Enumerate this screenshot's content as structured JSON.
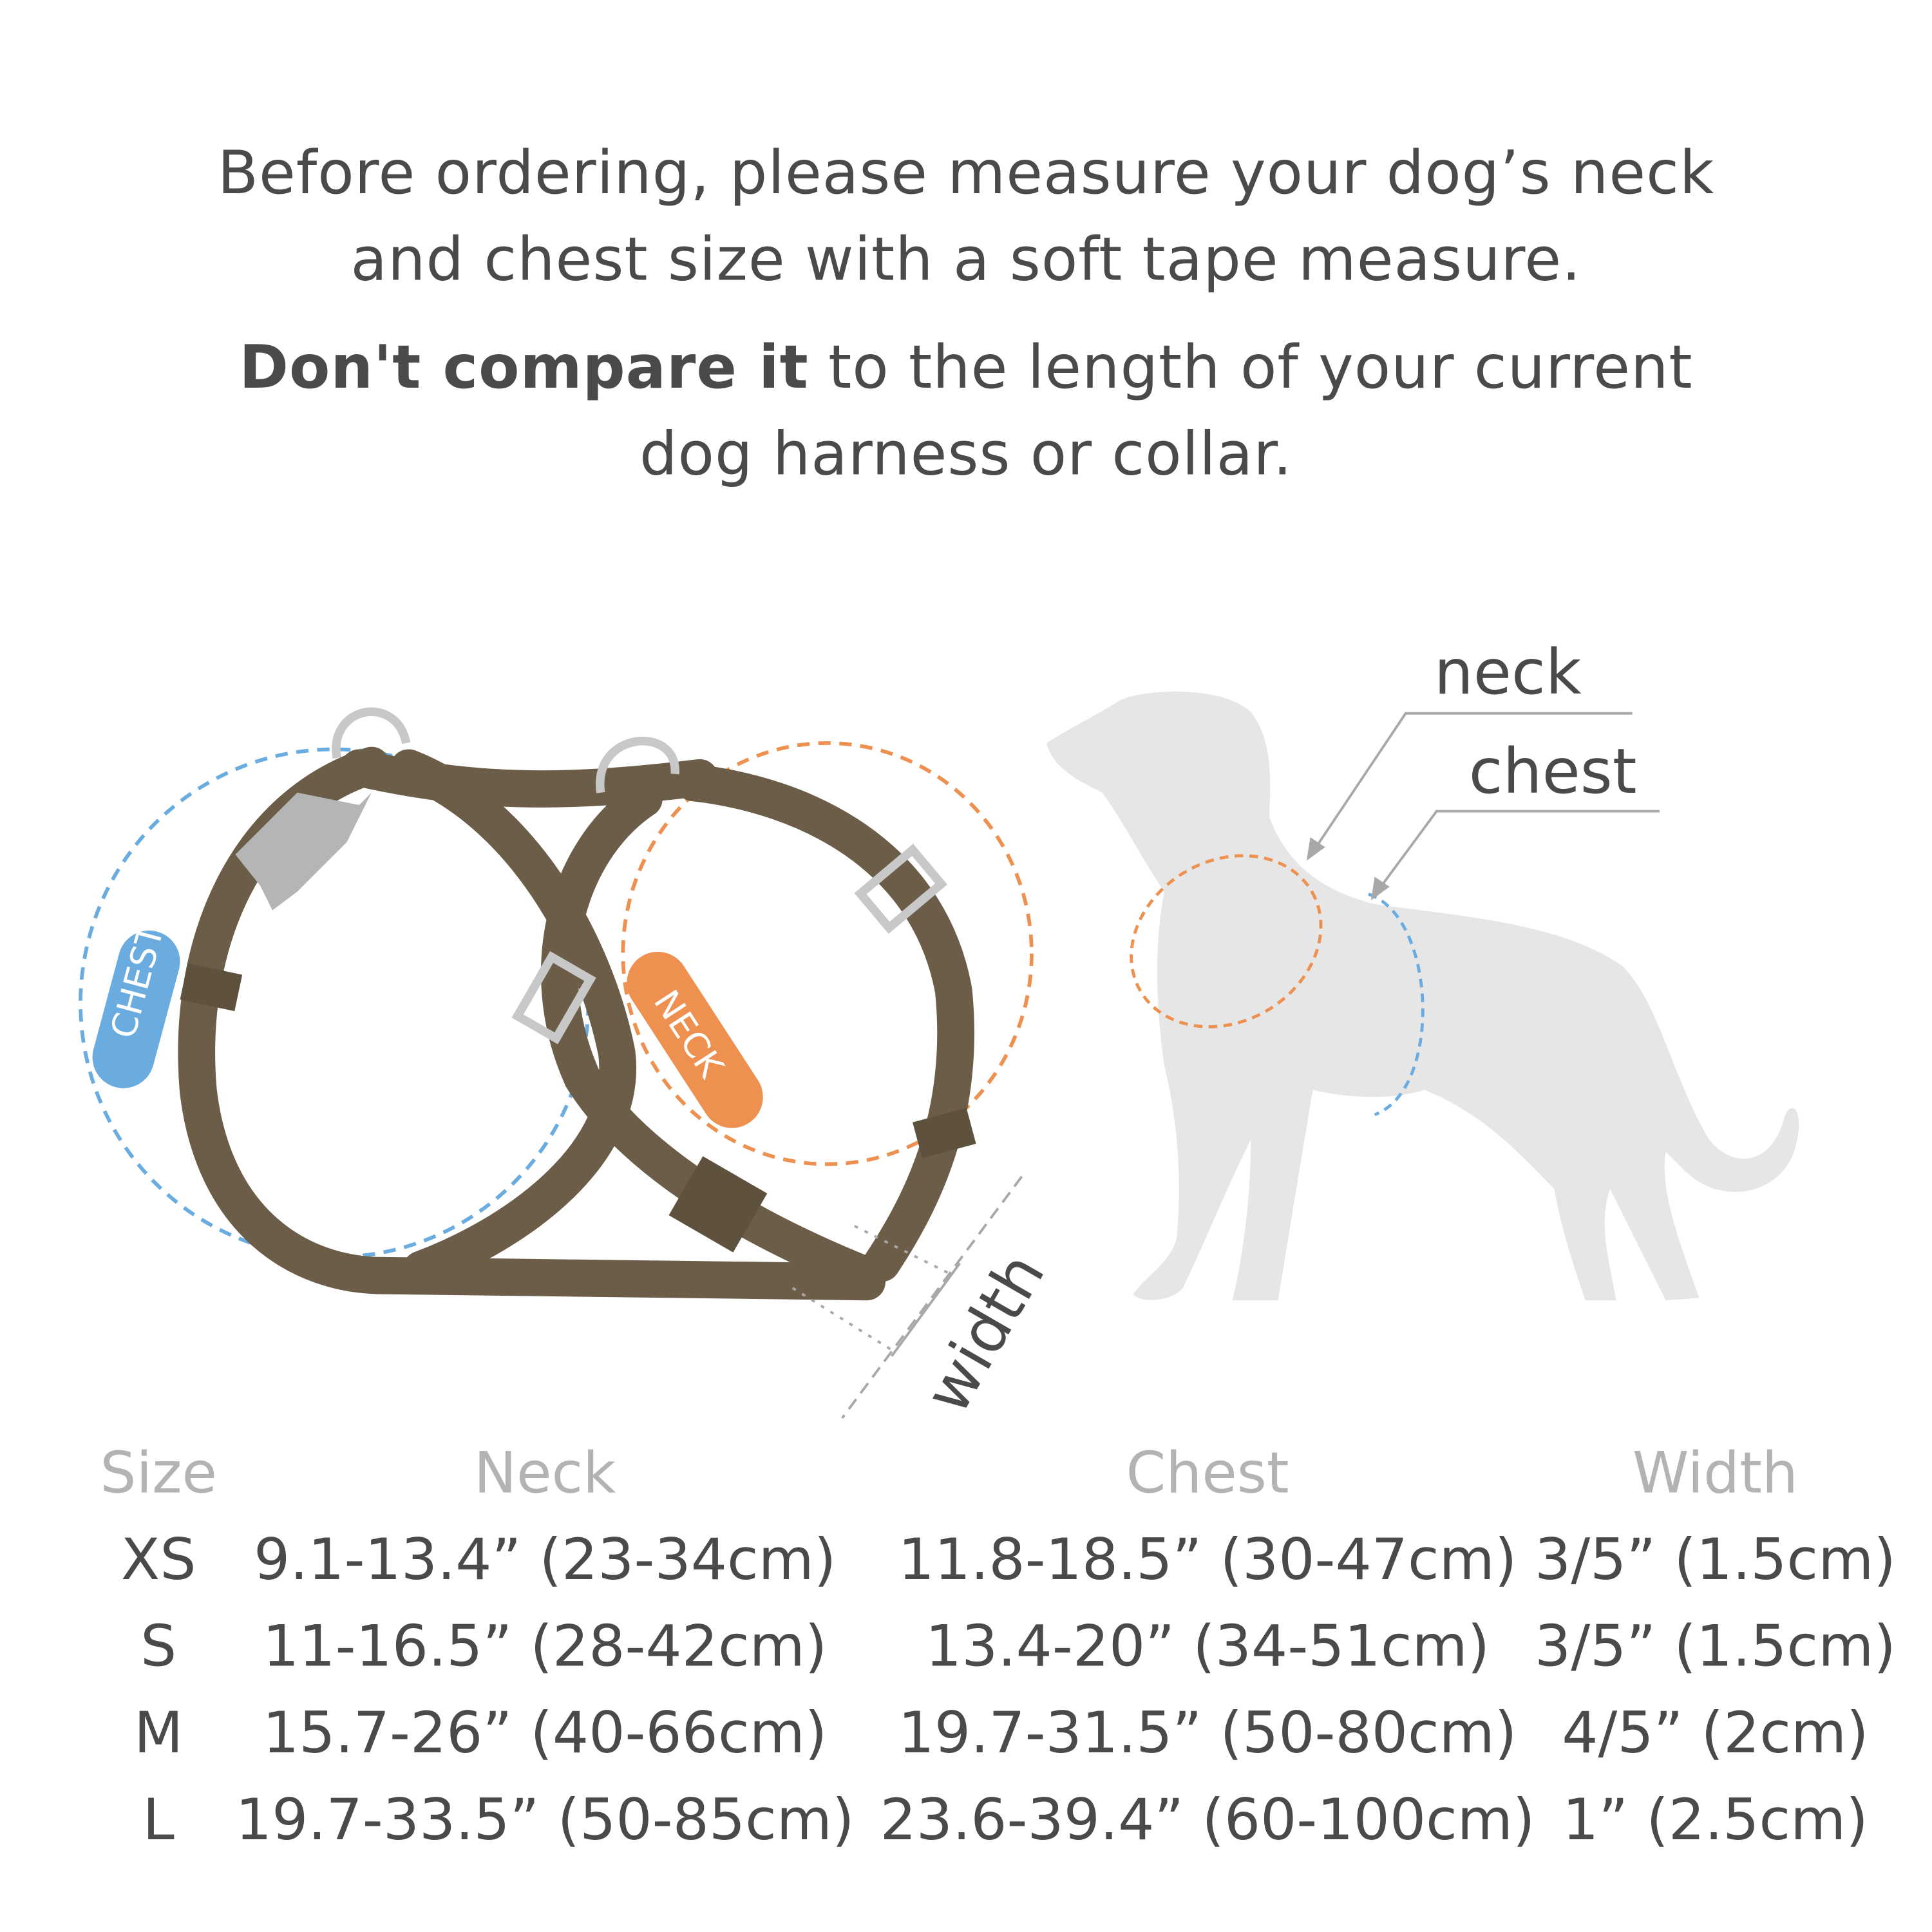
{
  "intro": {
    "line1": "Before ordering, please measure your dog’s neck",
    "line2": "and chest size with a soft tape measure.",
    "line3_bold": "Don't compare it",
    "line3_rest": " to the length of your current",
    "line4": "dog harness or collar."
  },
  "diagram": {
    "chest_tag": "CHEST",
    "neck_tag": "NECK",
    "width_label": "width",
    "dog_neck_label": "neck",
    "dog_chest_label": "chest",
    "colors": {
      "strap": "#6b5d47",
      "chest": "#6aace0",
      "neck": "#ee9150",
      "hardware": "#c8c8c8",
      "dog": "#e6e6e6"
    }
  },
  "table": {
    "headers": [
      "Size",
      "Neck",
      "Chest",
      "Width"
    ],
    "rows": [
      [
        "XS",
        "9.1-13.4” (23-34cm)",
        "11.8-18.5” (30-47cm)",
        "3/5” (1.5cm)"
      ],
      [
        "S",
        "11-16.5” (28-42cm)",
        "13.4-20” (34-51cm)",
        "3/5” (1.5cm)"
      ],
      [
        "M",
        "15.7-26” (40-66cm)",
        "19.7-31.5” (50-80cm)",
        "4/5” (2cm)"
      ],
      [
        "L",
        "19.7-33.5” (50-85cm)",
        "23.6-39.4” (60-100cm)",
        "1” (2.5cm)"
      ]
    ]
  }
}
